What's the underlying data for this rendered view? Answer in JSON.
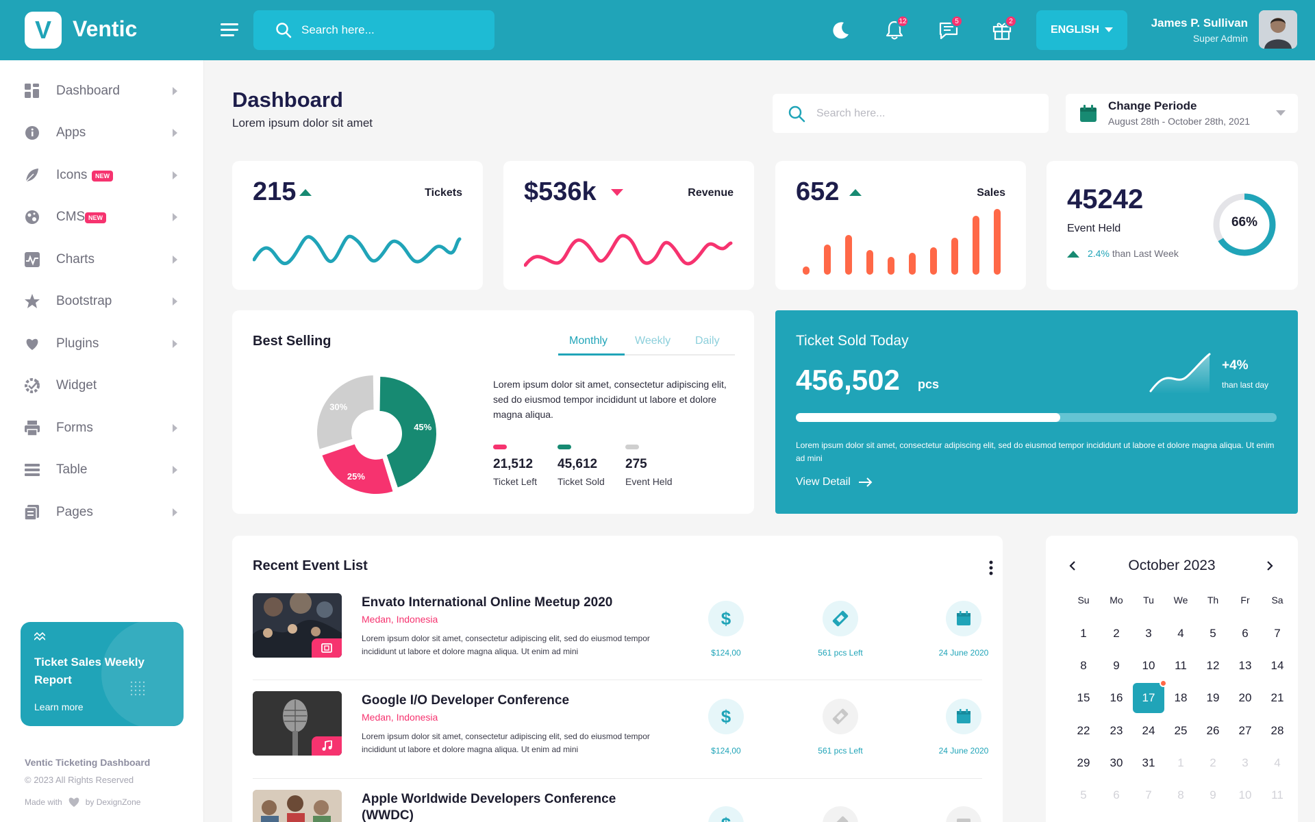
{
  "brand": {
    "logo_letter": "V",
    "name": "Ventic"
  },
  "header": {
    "search_placeholder": "Search here...",
    "notifications_count": "12",
    "messages_count": "5",
    "gifts_count": "2",
    "language": "ENGLISH",
    "user_name": "James P. Sullivan",
    "user_role": "Super Admin"
  },
  "sidebar": {
    "items": [
      {
        "label": "Dashboard",
        "icon": "grid-icon"
      },
      {
        "label": "Apps",
        "icon": "info-icon"
      },
      {
        "label": "Icons",
        "icon": "leaf-icon",
        "badge": "NEW"
      },
      {
        "label": "CMS",
        "icon": "globe-icon",
        "badge": "NEW"
      },
      {
        "label": "Charts",
        "icon": "chart-icon"
      },
      {
        "label": "Bootstrap",
        "icon": "star-icon"
      },
      {
        "label": "Plugins",
        "icon": "heart-icon"
      },
      {
        "label": "Widget",
        "icon": "gear-check-icon"
      },
      {
        "label": "Forms",
        "icon": "printer-icon"
      },
      {
        "label": "Table",
        "icon": "list-icon"
      },
      {
        "label": "Pages",
        "icon": "pages-icon"
      }
    ],
    "promo": {
      "title": "Ticket Sales Weekly Report",
      "link": "Learn more"
    },
    "footer": {
      "title": "Ventic Ticketing Dashboard",
      "copyright": "© 2023 All Rights Reserved",
      "made_with": "Made with",
      "by": "by DexignZone"
    }
  },
  "page": {
    "title": "Dashboard",
    "subtitle": "Lorem ipsum dolor sit amet",
    "search_placeholder": "Search here...",
    "period_title": "Change Periode",
    "period_range": "August 28th - October 28th, 2021"
  },
  "stats": [
    {
      "value": "215",
      "label": "Tickets",
      "trend": "up"
    },
    {
      "value": "$536k",
      "label": "Revenue",
      "trend": "down"
    },
    {
      "value": "652",
      "label": "Sales",
      "trend": "up"
    }
  ],
  "event_held": {
    "value": "45242",
    "label": "Event Held",
    "percent_label": "66%",
    "percent": 0.66,
    "change": "2.4%",
    "change_text": "than Last Week"
  },
  "best_selling": {
    "title": "Best Selling",
    "tabs": [
      "Monthly",
      "Weekly",
      "Daily"
    ],
    "active_tab": "Monthly",
    "description": "Lorem ipsum dolor sit amet, consectetur adipiscing elit, sed do eiusmod tempor incididunt ut labore et dolore magna aliqua.",
    "legend": [
      {
        "value": "21,512",
        "label": "Ticket Left",
        "color": "#f6336f"
      },
      {
        "value": "45,612",
        "label": "Ticket Sold",
        "color": "#178a72"
      },
      {
        "value": "275",
        "label": "Event Held",
        "color": "#cfcfcf"
      }
    ],
    "colors": {
      "green": "#178a72",
      "pink": "#f6336f",
      "grey": "#cfcfcf"
    }
  },
  "chart_data": {
    "type": "pie",
    "categories": [
      "45%",
      "25%",
      "30%"
    ],
    "values": [
      45,
      25,
      30
    ],
    "colors": [
      "#178a72",
      "#f6336f",
      "#cfcfcf"
    ]
  },
  "ticket_sold_today": {
    "title": "Ticket Sold Today",
    "value": "456,502",
    "unit": "pcs",
    "change": "+4%",
    "change_text": "than last day",
    "progress": 0.55,
    "description": "Lorem ipsum dolor sit amet, consectetur adipiscing elit, sed do eiusmod tempor incididunt ut labore et dolore magna aliqua. Ut enim ad mini",
    "link": "View Detail"
  },
  "recent_events": {
    "title": "Recent Event List",
    "items": [
      {
        "title": "Envato International Online Meetup 2020",
        "location": "Medan, Indonesia",
        "description": "Lorem ipsum dolor sit amet, consectetur adipiscing elit, sed do eiusmod tempor incididunt ut labore et dolore magna aliqua. Ut enim ad mini",
        "price": "$124,00",
        "tickets": "561 pcs Left",
        "date": "24 June 2020"
      },
      {
        "title": "Google I/O Developer Conference",
        "location": "Medan, Indonesia",
        "description": "Lorem ipsum dolor sit amet, consectetur adipiscing elit, sed do eiusmod tempor incididunt ut labore et dolore magna aliqua. Ut enim ad mini",
        "price": "$124,00",
        "tickets": "561 pcs Left",
        "date": "24 June 2020"
      },
      {
        "title": "Apple Worldwide Developers Conference (WWDC)"
      }
    ]
  },
  "calendar": {
    "month": "October 2023",
    "weekdays": [
      "Su",
      "Mo",
      "Tu",
      "We",
      "Th",
      "Fr",
      "Sa"
    ],
    "days": [
      [
        "1",
        "2",
        "3",
        "4",
        "5",
        "6",
        "7"
      ],
      [
        "8",
        "9",
        "10",
        "11",
        "12",
        "13",
        "14"
      ],
      [
        "15",
        "16",
        "17",
        "18",
        "19",
        "20",
        "21"
      ],
      [
        "22",
        "23",
        "24",
        "25",
        "26",
        "27",
        "28"
      ],
      [
        "29",
        "30",
        "31",
        "1",
        "2",
        "3",
        "4"
      ],
      [
        "5",
        "6",
        "7",
        "8",
        "9",
        "10",
        "11"
      ]
    ],
    "selected": "17"
  }
}
